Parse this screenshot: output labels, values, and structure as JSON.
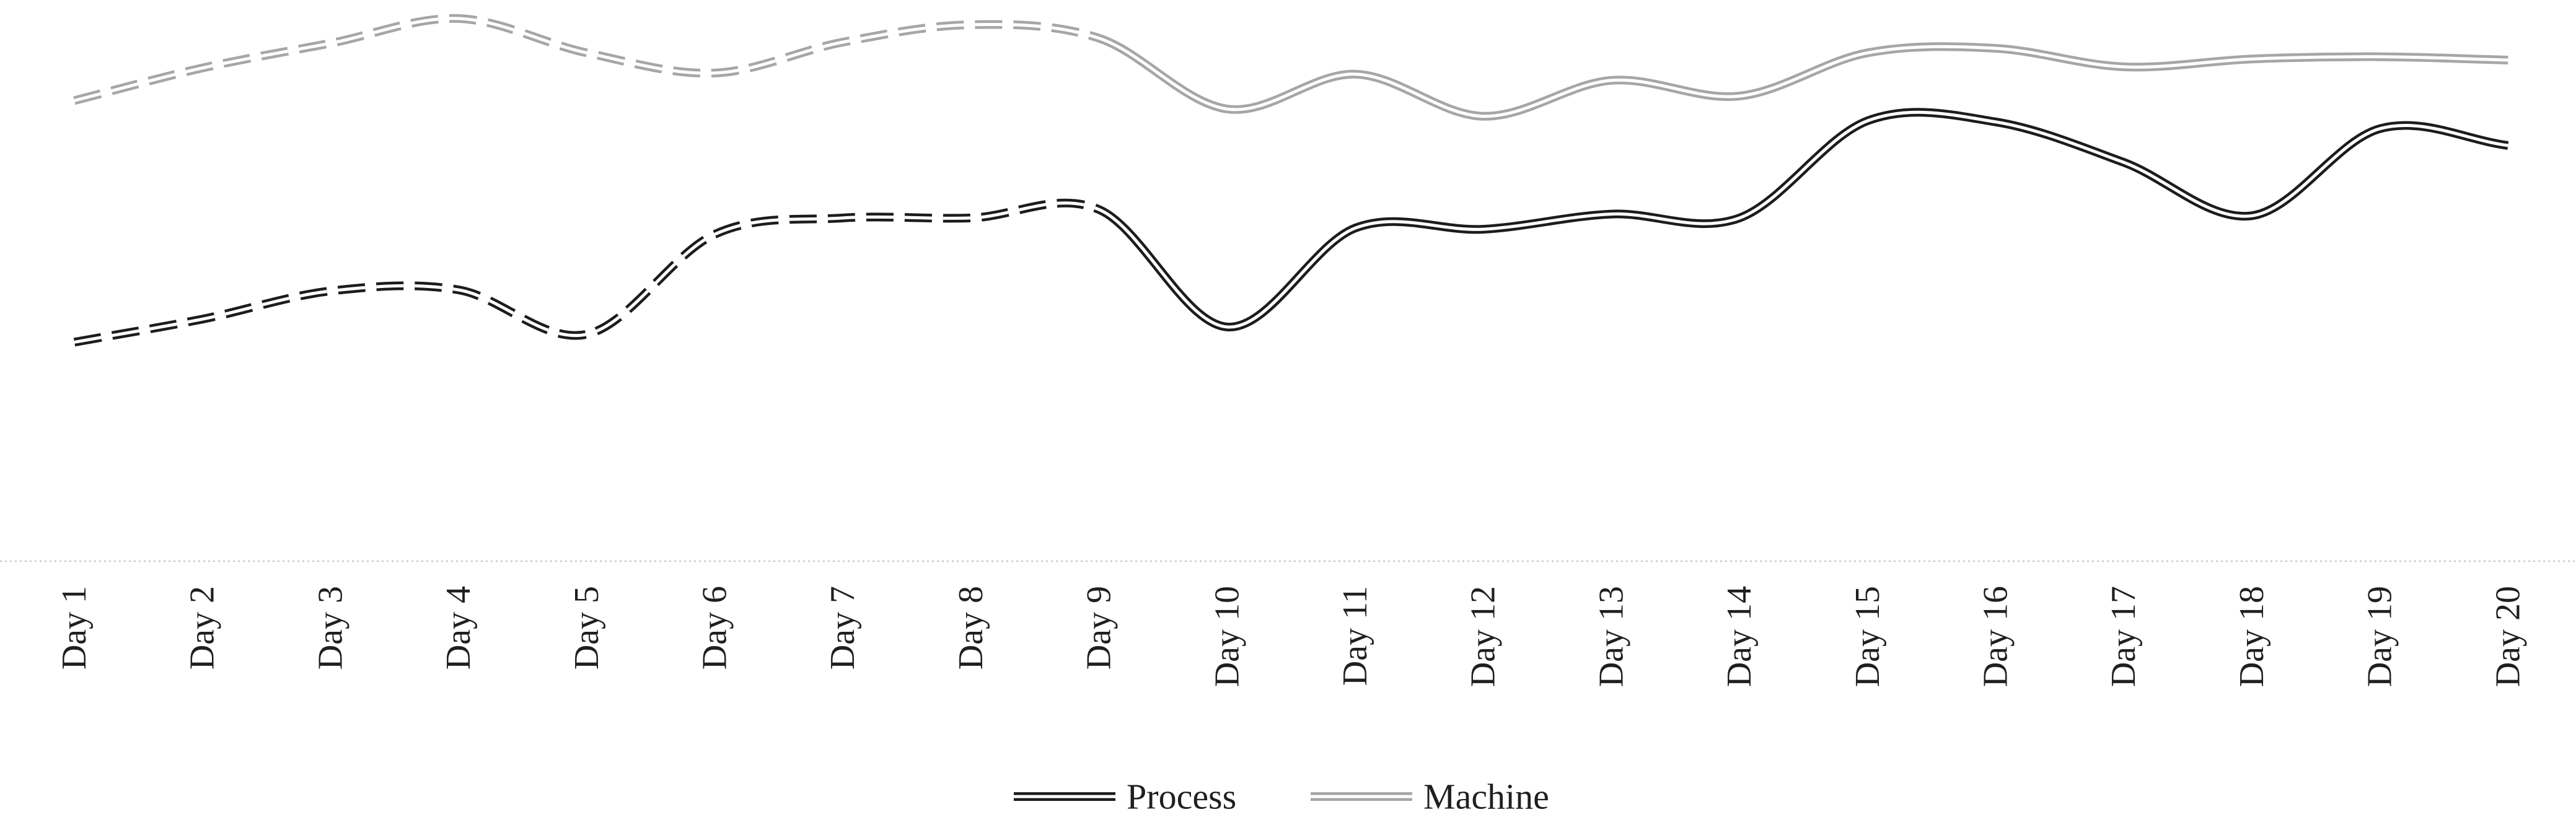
{
  "chart_data": {
    "type": "line",
    "title": "",
    "xlabel": "",
    "ylabel": "",
    "categories": [
      "Day 1",
      "Day 2",
      "Day 3",
      "Day 4",
      "Day 5",
      "Day 6",
      "Day 7",
      "Day 8",
      "Day 9",
      "Day 10",
      "Day 11",
      "Day 12",
      "Day 13",
      "Day 14",
      "Day 15",
      "Day 16",
      "Day 17",
      "Day 18",
      "Day 19",
      "Day 20"
    ],
    "series": [
      {
        "name": "Process",
        "color": "#1c1c1c",
        "line_style": "double-line",
        "dashed_categories": [
          "Day 1",
          "Day 9"
        ],
        "solid_categories": [
          "Day 9",
          "Day 20"
        ],
        "values": [
          39.1,
          43.2,
          48.2,
          48.4,
          40.5,
          58.3,
          61.2,
          61.2,
          62.7,
          41.8,
          59.4,
          59.2,
          61.9,
          61.2,
          78.5,
          78.3,
          71.1,
          61.6,
          77.1,
          74.1
        ]
      },
      {
        "name": "Machine",
        "color": "#a6a6a6",
        "line_style": "double-line",
        "dashed_categories": [
          "Day 1",
          "Day 9"
        ],
        "solid_categories": [
          "Day 9",
          "Day 20"
        ],
        "values": [
          82.1,
          87.9,
          92.3,
          96.7,
          90.6,
          87.0,
          92.5,
          95.6,
          93.2,
          80.6,
          86.8,
          79.3,
          85.7,
          82.9,
          90.6,
          91.4,
          88.1,
          89.5,
          89.9,
          89.3
        ]
      }
    ],
    "ylim": [
      0,
      100
    ],
    "y_axis_visible": false,
    "grid": false,
    "x_axis_line_color": "#c9c9c9",
    "x_tick_rotation_deg": 90,
    "legend_position": "bottom-center",
    "legend_entries": [
      "Process",
      "Machine"
    ]
  }
}
